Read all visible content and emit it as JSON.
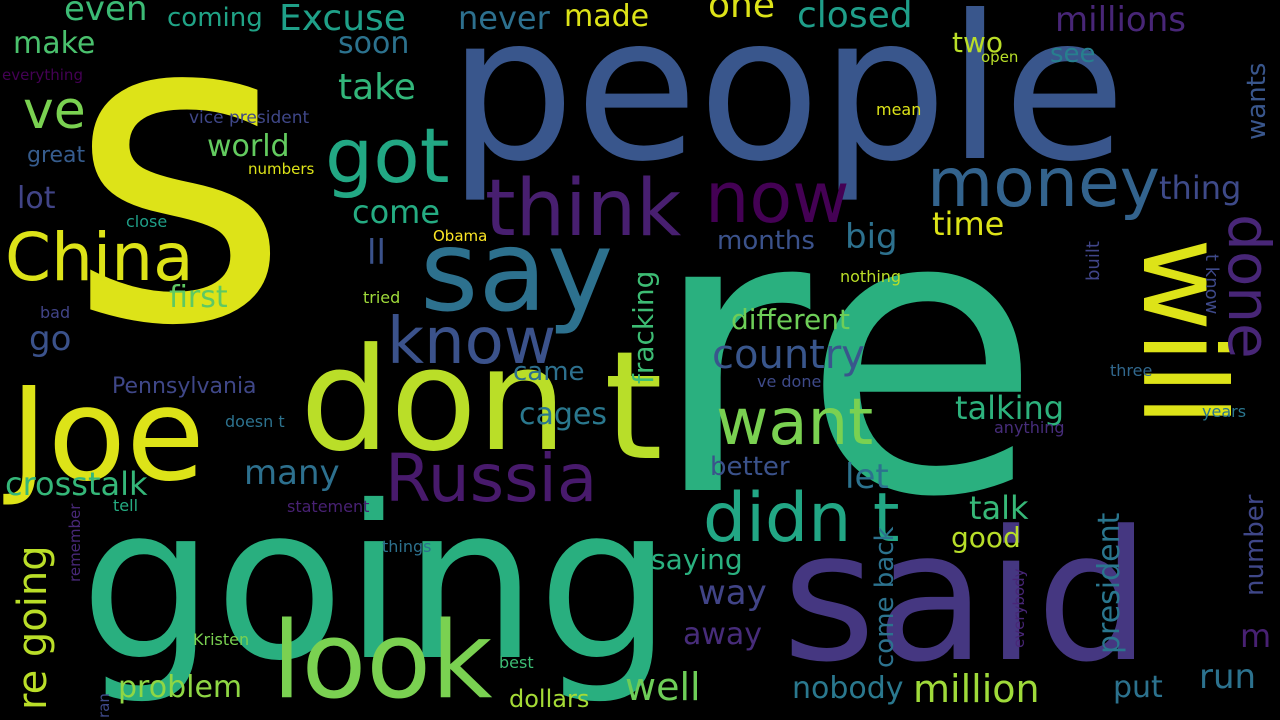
{
  "words": [
    {
      "text": "s",
      "color": "#dde318"
    },
    {
      "text": "re",
      "color": "#2ab07f"
    },
    {
      "text": "people",
      "color": "#39568c"
    },
    {
      "text": "going",
      "color": "#29af7f"
    },
    {
      "text": "said",
      "color": "#453781"
    },
    {
      "text": "don",
      "color": "#bade28"
    },
    {
      "text": "Joe",
      "color": "#dde318"
    },
    {
      "text": "t",
      "color": "#b8de29"
    },
    {
      "text": "look",
      "color": "#7ad151"
    },
    {
      "text": "say",
      "color": "#2d718e"
    },
    {
      "text": "will",
      "color": "#dde318"
    },
    {
      "text": "think",
      "color": "#481f70"
    },
    {
      "text": "now",
      "color": "#440154"
    },
    {
      "text": "money",
      "color": "#33638d"
    },
    {
      "text": "got",
      "color": "#22a884"
    },
    {
      "text": "China",
      "color": "#dde318"
    },
    {
      "text": "know",
      "color": "#3b528b"
    },
    {
      "text": "Russia",
      "color": "#481a6c"
    },
    {
      "text": "want",
      "color": "#7ad151"
    },
    {
      "text": "didn t",
      "color": "#22a785"
    },
    {
      "text": "done",
      "color": "#482677"
    },
    {
      "text": "country",
      "color": "#39568c"
    },
    {
      "text": "ve",
      "color": "#7ad151"
    },
    {
      "text": "million",
      "color": "#9fda3a"
    },
    {
      "text": "millions",
      "color": "#482677"
    },
    {
      "text": "closed",
      "color": "#1f9e89"
    },
    {
      "text": "Excuse",
      "color": "#1fa088"
    },
    {
      "text": "even",
      "color": "#3cbb75"
    },
    {
      "text": "coming",
      "color": "#20a386"
    },
    {
      "text": "never",
      "color": "#2d708e"
    },
    {
      "text": "made",
      "color": "#dde318"
    },
    {
      "text": "one",
      "color": "#dde318"
    },
    {
      "text": "make",
      "color": "#4ac16d"
    },
    {
      "text": "soon",
      "color": "#2c728e"
    },
    {
      "text": "two",
      "color": "#bade28"
    },
    {
      "text": "see",
      "color": "#277f8e"
    },
    {
      "text": "take",
      "color": "#32b67a"
    },
    {
      "text": "wants",
      "color": "#39568c"
    },
    {
      "text": "everything",
      "color": "#440154"
    },
    {
      "text": "open",
      "color": "#b8de29"
    },
    {
      "text": "vice president",
      "color": "#3f4788"
    },
    {
      "text": "mean",
      "color": "#dde318"
    },
    {
      "text": "great",
      "color": "#365c8d"
    },
    {
      "text": "world",
      "color": "#63cb5f"
    },
    {
      "text": "numbers",
      "color": "#dde318"
    },
    {
      "text": "thing",
      "color": "#3e4a89"
    },
    {
      "text": "lot",
      "color": "#414487"
    },
    {
      "text": "come",
      "color": "#25ac82"
    },
    {
      "text": "close",
      "color": "#1f9f88"
    },
    {
      "text": "time",
      "color": "#dde318"
    },
    {
      "text": "Obama",
      "color": "#fde725"
    },
    {
      "text": "built",
      "color": "#404588"
    },
    {
      "text": "big",
      "color": "#2d718e"
    },
    {
      "text": "months",
      "color": "#3b528b"
    },
    {
      "text": "ll",
      "color": "#3b528b"
    },
    {
      "text": "fracking",
      "color": "#3dbc74"
    },
    {
      "text": "first",
      "color": "#5ec962"
    },
    {
      "text": "t know",
      "color": "#3e4989"
    },
    {
      "text": "nothing",
      "color": "#bade28"
    },
    {
      "text": "bad",
      "color": "#414487"
    },
    {
      "text": "tried",
      "color": "#9fda3a"
    },
    {
      "text": "different",
      "color": "#6ece58"
    },
    {
      "text": "go",
      "color": "#3b528b"
    },
    {
      "text": "came",
      "color": "#2d708e"
    },
    {
      "text": "Pennsylvania",
      "color": "#3f4788"
    },
    {
      "text": "ve done",
      "color": "#3e4a89"
    },
    {
      "text": "three",
      "color": "#31688e"
    },
    {
      "text": "talking",
      "color": "#2db27d"
    },
    {
      "text": "cages",
      "color": "#2a788e"
    },
    {
      "text": "doesn t",
      "color": "#2c728e"
    },
    {
      "text": "years",
      "color": "#2a768e"
    },
    {
      "text": "anything",
      "color": "#472d7b"
    },
    {
      "text": "many",
      "color": "#2d708e"
    },
    {
      "text": "better",
      "color": "#3b528b"
    },
    {
      "text": "crosstalk",
      "color": "#35b779"
    },
    {
      "text": "let",
      "color": "#2c728e"
    },
    {
      "text": "number",
      "color": "#3f4788"
    },
    {
      "text": "talk",
      "color": "#37b878"
    },
    {
      "text": "re going",
      "color": "#bade28"
    },
    {
      "text": "tell",
      "color": "#25ac82"
    },
    {
      "text": "statement",
      "color": "#482173"
    },
    {
      "text": "good",
      "color": "#b8de29"
    },
    {
      "text": "president",
      "color": "#2a768e"
    },
    {
      "text": "remember",
      "color": "#482878"
    },
    {
      "text": "things",
      "color": "#2d718e"
    },
    {
      "text": "saying",
      "color": "#2ab07f"
    },
    {
      "text": "come back",
      "color": "#2c728e"
    },
    {
      "text": "everybody",
      "color": "#482677"
    },
    {
      "text": "way",
      "color": "#414487"
    },
    {
      "text": "m",
      "color": "#482173"
    },
    {
      "text": "away",
      "color": "#472c7a"
    },
    {
      "text": "Kristen",
      "color": "#7ad151"
    },
    {
      "text": "best",
      "color": "#3dbc74"
    },
    {
      "text": "problem",
      "color": "#8fd744"
    },
    {
      "text": "well",
      "color": "#6ece58"
    },
    {
      "text": "run",
      "color": "#2c728e"
    },
    {
      "text": "nobody",
      "color": "#2a788e"
    },
    {
      "text": "put",
      "color": "#2c728e"
    },
    {
      "text": "ran",
      "color": "#3e4989"
    },
    {
      "text": "dollars",
      "color": "#a5db36"
    }
  ]
}
